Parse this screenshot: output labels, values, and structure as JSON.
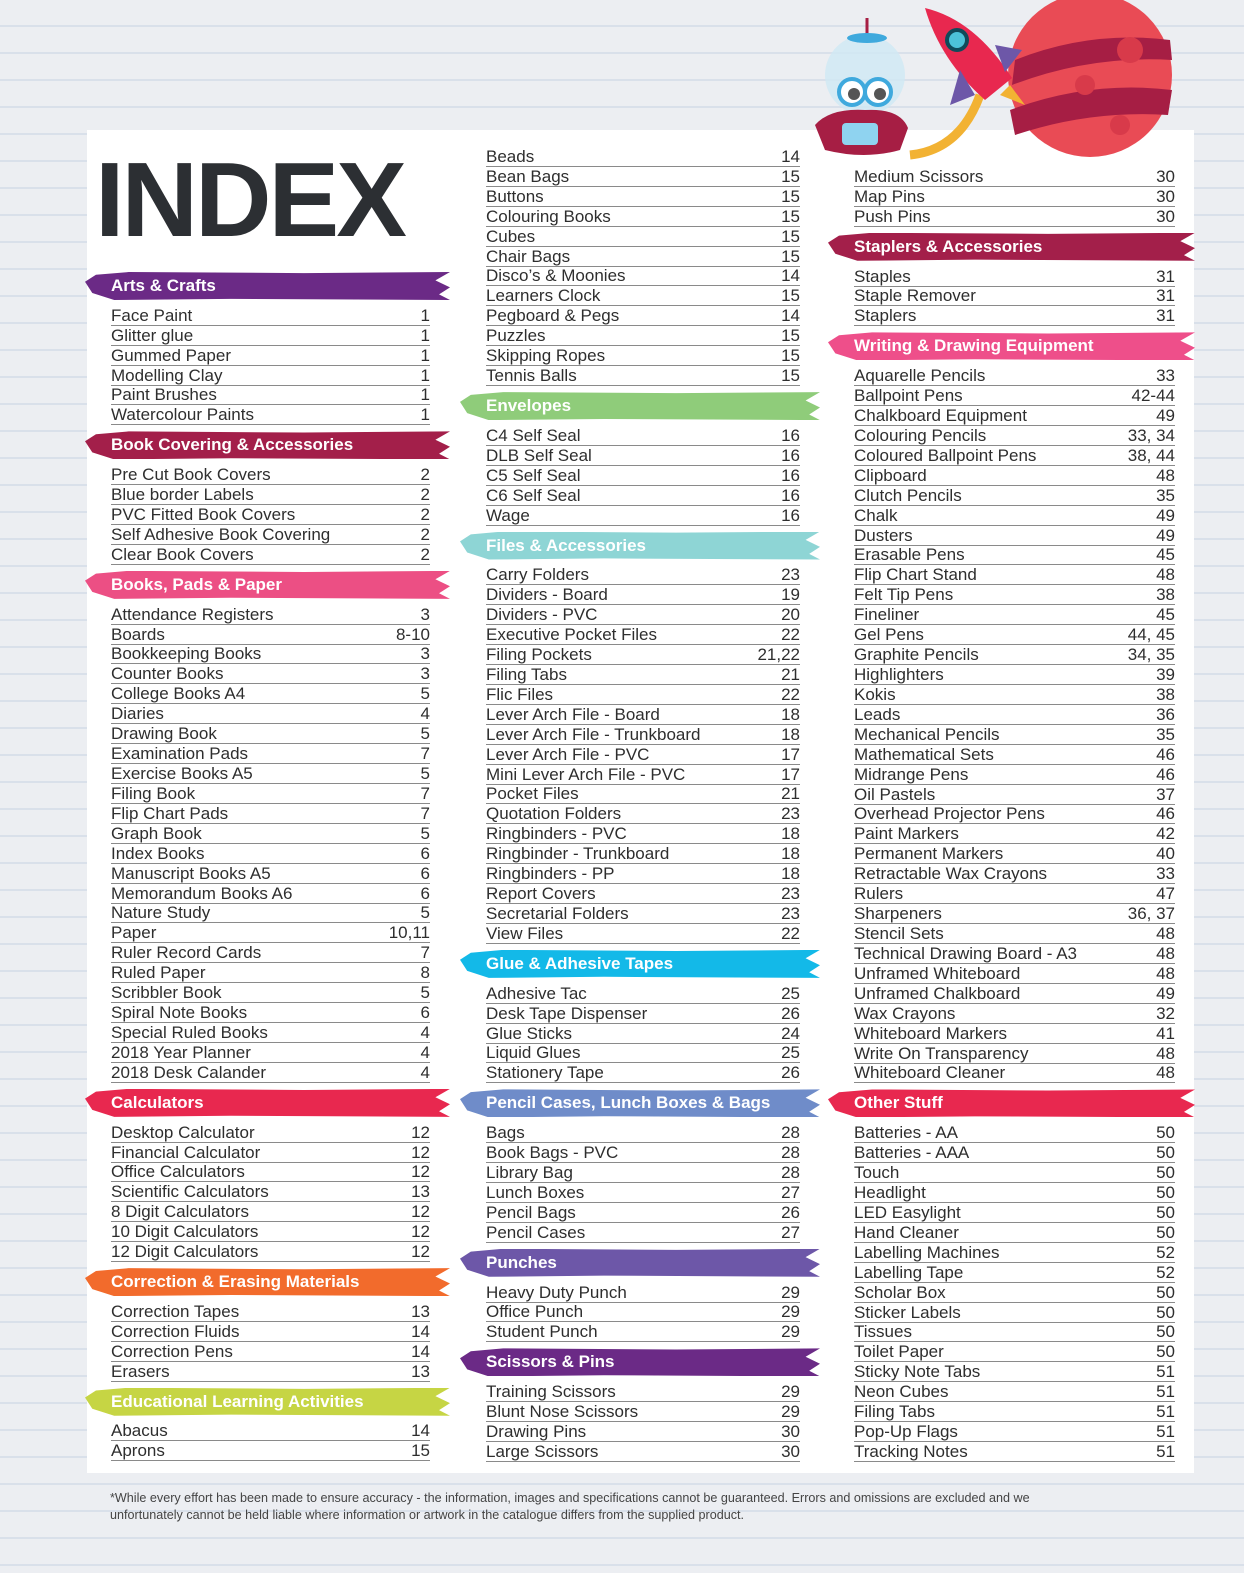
{
  "title": "INDEX",
  "footer": "*While every effort has been made to ensure accuracy - the information, images and specifications cannot be guaranteed. Errors and omissions are excluded and we unfortunately cannot be held liable where information or artwork in the catalogue differs from the supplied product.",
  "columns": [
    {
      "sections": [
        {
          "title": "Arts & Crafts",
          "color": "#6b2a86",
          "items": [
            [
              "Face Paint",
              "1"
            ],
            [
              "Glitter glue",
              "1"
            ],
            [
              "Gummed Paper",
              "1"
            ],
            [
              "Modelling Clay",
              "1"
            ],
            [
              "Paint Brushes",
              "1"
            ],
            [
              "Watercolour Paints",
              "1"
            ]
          ]
        },
        {
          "title": "Book Covering & Accessories",
          "color": "#a31f4a",
          "items": [
            [
              "Pre Cut Book Covers",
              "2"
            ],
            [
              "Blue border Labels",
              "2"
            ],
            [
              "PVC Fitted Book Covers",
              "2"
            ],
            [
              "Self Adhesive Book Covering",
              "2"
            ],
            [
              "Clear Book Covers",
              "2"
            ]
          ]
        },
        {
          "title": "Books, Pads & Paper",
          "color": "#ec4f84",
          "items": [
            [
              "Attendance Registers",
              "3"
            ],
            [
              "Boards",
              "8-10"
            ],
            [
              "Bookkeeping Books",
              "3"
            ],
            [
              "Counter Books",
              "3"
            ],
            [
              "College Books A4",
              "5"
            ],
            [
              "Diaries",
              "4"
            ],
            [
              "Drawing Book",
              "5"
            ],
            [
              "Examination Pads",
              "7"
            ],
            [
              "Exercise Books A5",
              "5"
            ],
            [
              "Filing Book",
              "7"
            ],
            [
              "Flip Chart Pads",
              "7"
            ],
            [
              "Graph Book",
              "5"
            ],
            [
              "Index Books",
              "6"
            ],
            [
              "Manuscript Books A5",
              "6"
            ],
            [
              "Memorandum Books A6",
              "6"
            ],
            [
              "Nature Study",
              "5"
            ],
            [
              "Paper",
              "10,11"
            ],
            [
              "Ruler Record Cards",
              "7"
            ],
            [
              "Ruled Paper",
              "8"
            ],
            [
              "Scribbler Book",
              "5"
            ],
            [
              "Spiral Note Books",
              "6"
            ],
            [
              "Special Ruled Books",
              "4"
            ],
            [
              "2018 Year Planner",
              "4"
            ],
            [
              "2018 Desk Calander",
              "4"
            ]
          ]
        },
        {
          "title": "Calculators",
          "color": "#e8284f",
          "items": [
            [
              "Desktop Calculator",
              "12"
            ],
            [
              "Financial Calculator",
              "12"
            ],
            [
              "Office Calculators",
              "12"
            ],
            [
              "Scientific Calculators",
              "13"
            ],
            [
              "8 Digit Calculators",
              "12"
            ],
            [
              "10 Digit Calculators",
              "12"
            ],
            [
              "12 Digit Calculators",
              "12"
            ]
          ]
        },
        {
          "title": "Correction & Erasing Materials",
          "color": "#f26b2c",
          "items": [
            [
              "Correction Tapes",
              "13"
            ],
            [
              "Correction Fluids",
              "14"
            ],
            [
              "Correction Pens",
              "14"
            ],
            [
              "Erasers",
              "13"
            ]
          ]
        },
        {
          "title": "Educational Learning Activities",
          "color": "#c6d544",
          "items": [
            [
              "Abacus",
              "14"
            ],
            [
              "Aprons",
              "15"
            ]
          ]
        }
      ]
    },
    {
      "sections": [
        {
          "title": "",
          "items": [
            [
              "Beads",
              "14"
            ],
            [
              "Bean Bags",
              "15"
            ],
            [
              "Buttons",
              "15"
            ],
            [
              "Colouring Books",
              "15"
            ],
            [
              "Cubes",
              "15"
            ],
            [
              "Chair Bags",
              "15"
            ],
            [
              "Disco’s & Moonies",
              "14"
            ],
            [
              "Learners Clock",
              "15"
            ],
            [
              "Pegboard & Pegs",
              "14"
            ],
            [
              "Puzzles",
              "15"
            ],
            [
              "Skipping Ropes",
              "15"
            ],
            [
              "Tennis Balls",
              "15"
            ]
          ]
        },
        {
          "title": "Envelopes",
          "color": "#8fcc7a",
          "items": [
            [
              "C4 Self Seal",
              "16"
            ],
            [
              "DLB Self Seal",
              "16"
            ],
            [
              "C5 Self Seal",
              "16"
            ],
            [
              "C6 Self Seal",
              "16"
            ],
            [
              "Wage",
              "16"
            ]
          ]
        },
        {
          "title": "Files & Accessories",
          "color": "#8ed5d5",
          "items": [
            [
              "Carry Folders",
              "23"
            ],
            [
              "Dividers - Board",
              "19"
            ],
            [
              "Dividers - PVC",
              "20"
            ],
            [
              "Executive Pocket Files",
              "22"
            ],
            [
              "Filing Pockets",
              "21,22"
            ],
            [
              "Filing Tabs",
              "21"
            ],
            [
              "Flic Files",
              "22"
            ],
            [
              "Lever Arch File - Board",
              "18"
            ],
            [
              "Lever Arch File - Trunkboard",
              "18"
            ],
            [
              "Lever Arch File - PVC",
              "17"
            ],
            [
              "Mini Lever Arch File - PVC",
              "17"
            ],
            [
              "Pocket Files",
              "21"
            ],
            [
              "Quotation Folders",
              "23"
            ],
            [
              "Ringbinders - PVC",
              "18"
            ],
            [
              "Ringbinder - Trunkboard",
              "18"
            ],
            [
              "Ringbinders - PP",
              "18"
            ],
            [
              "Report Covers",
              "23"
            ],
            [
              "Secretarial Folders",
              "23"
            ],
            [
              "View Files",
              "22"
            ]
          ]
        },
        {
          "title": "Glue & Adhesive Tapes",
          "color": "#13b9e8",
          "items": [
            [
              "Adhesive Tac",
              "25"
            ],
            [
              "Desk Tape Dispenser",
              "26"
            ],
            [
              "Glue Sticks",
              "24"
            ],
            [
              "Liquid Glues",
              "25"
            ],
            [
              "Stationery Tape",
              "26"
            ]
          ]
        },
        {
          "title": "Pencil Cases, Lunch Boxes & Bags",
          "color": "#6f8cc9",
          "items": [
            [
              "Bags",
              "28"
            ],
            [
              "Book Bags - PVC",
              "28"
            ],
            [
              "Library Bag",
              "28"
            ],
            [
              "Lunch Boxes",
              "27"
            ],
            [
              "Pencil Bags",
              "26"
            ],
            [
              "Pencil Cases",
              "27"
            ]
          ]
        },
        {
          "title": "Punches",
          "color": "#6d57a8",
          "items": [
            [
              "Heavy Duty Punch",
              "29"
            ],
            [
              "Office Punch",
              "29"
            ],
            [
              "Student Punch",
              "29"
            ]
          ]
        },
        {
          "title": "Scissors & Pins",
          "color": "#6b2a86",
          "items": [
            [
              "Training Scissors",
              "29"
            ],
            [
              "Blunt Nose Scissors",
              "29"
            ],
            [
              "Drawing Pins",
              "30"
            ],
            [
              "Large Scissors",
              "30"
            ]
          ]
        }
      ]
    },
    {
      "sections": [
        {
          "title": "",
          "items": [
            [
              "Medium Scissors",
              "30"
            ],
            [
              "Map Pins",
              "30"
            ],
            [
              "Push Pins",
              "30"
            ]
          ]
        },
        {
          "title": "Staplers & Accessories",
          "color": "#a31f4a",
          "items": [
            [
              "Staples",
              "31"
            ],
            [
              "Staple Remover",
              "31"
            ],
            [
              "Staplers",
              "31"
            ]
          ]
        },
        {
          "title": "Writing & Drawing Equipment",
          "color": "#ee4f8a",
          "items": [
            [
              "Aquarelle Pencils",
              "33"
            ],
            [
              "Ballpoint Pens",
              "42-44"
            ],
            [
              "Chalkboard Equipment",
              "49"
            ],
            [
              "Colouring Pencils",
              "33, 34"
            ],
            [
              "Coloured Ballpoint Pens",
              "38, 44"
            ],
            [
              "Clipboard",
              "48"
            ],
            [
              "Clutch Pencils",
              "35"
            ],
            [
              "Chalk",
              "49"
            ],
            [
              "Dusters",
              "49"
            ],
            [
              "Erasable Pens",
              "45"
            ],
            [
              "Flip Chart Stand",
              "48"
            ],
            [
              "Felt Tip Pens",
              "38"
            ],
            [
              "Fineliner",
              "45"
            ],
            [
              "Gel Pens",
              "44, 45"
            ],
            [
              "Graphite Pencils",
              "34, 35"
            ],
            [
              "Highlighters",
              "39"
            ],
            [
              "Kokis",
              "38"
            ],
            [
              "Leads",
              "36"
            ],
            [
              "Mechanical Pencils",
              "35"
            ],
            [
              "Mathematical Sets",
              "46"
            ],
            [
              "Midrange Pens",
              "46"
            ],
            [
              "Oil Pastels",
              "37"
            ],
            [
              "Overhead Projector Pens",
              "46"
            ],
            [
              "Paint Markers",
              "42"
            ],
            [
              "Permanent Markers",
              "40"
            ],
            [
              "Retractable Wax Crayons",
              "33"
            ],
            [
              "Rulers",
              "47"
            ],
            [
              "Sharpeners",
              "36, 37"
            ],
            [
              "Stencil Sets",
              "48"
            ],
            [
              "Technical Drawing Board - A3",
              "48"
            ],
            [
              "Unframed Whiteboard",
              "48"
            ],
            [
              "Unframed Chalkboard",
              "49"
            ],
            [
              "Wax Crayons",
              "32"
            ],
            [
              "Whiteboard Markers",
              "41"
            ],
            [
              "Write On Transparency",
              "48"
            ],
            [
              "Whiteboard Cleaner",
              "48"
            ]
          ]
        },
        {
          "title": "Other Stuff",
          "color": "#e8284f",
          "items": [
            [
              "Batteries - AA",
              "50"
            ],
            [
              "Batteries - AAA",
              "50"
            ],
            [
              "Touch",
              "50"
            ],
            [
              "Headlight",
              "50"
            ],
            [
              "LED Easylight",
              "50"
            ],
            [
              "Hand Cleaner",
              "50"
            ],
            [
              "Labelling Machines",
              "52"
            ],
            [
              "Labelling Tape",
              "52"
            ],
            [
              "Scholar Box",
              "50"
            ],
            [
              "Sticker Labels",
              "50"
            ],
            [
              "Tissues",
              "50"
            ],
            [
              "Toilet Paper",
              "50"
            ],
            [
              "Sticky Note Tabs",
              "51"
            ],
            [
              "Neon Cubes",
              "51"
            ],
            [
              "Filing Tabs",
              "51"
            ],
            [
              "Pop-Up Flags",
              "51"
            ],
            [
              "Tracking Notes",
              "51"
            ]
          ]
        }
      ]
    }
  ]
}
